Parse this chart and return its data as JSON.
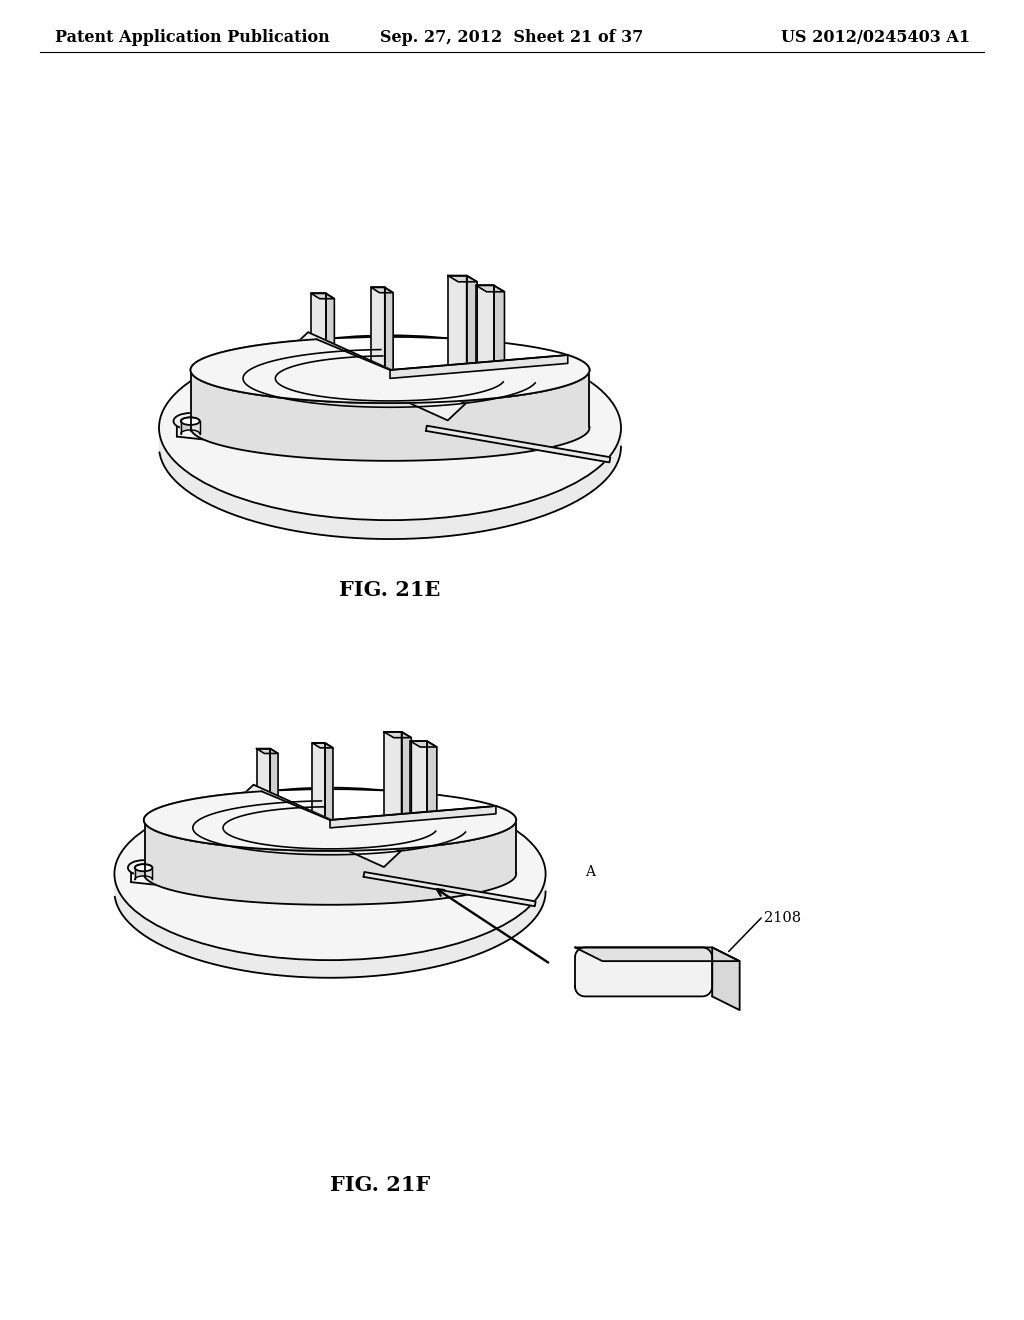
{
  "background_color": "#ffffff",
  "header_left": "Patent Application Publication",
  "header_center": "Sep. 27, 2012  Sheet 21 of 37",
  "header_right": "US 2012/0245403 A1",
  "fig_label_21e": "FIG. 21E",
  "fig_label_21f": "FIG. 21F",
  "line_color": "#000000",
  "line_width": 1.3,
  "text_color": "#000000",
  "label_fontsize": 15,
  "annotation_fontsize": 11,
  "header_fontsize": 11.5
}
